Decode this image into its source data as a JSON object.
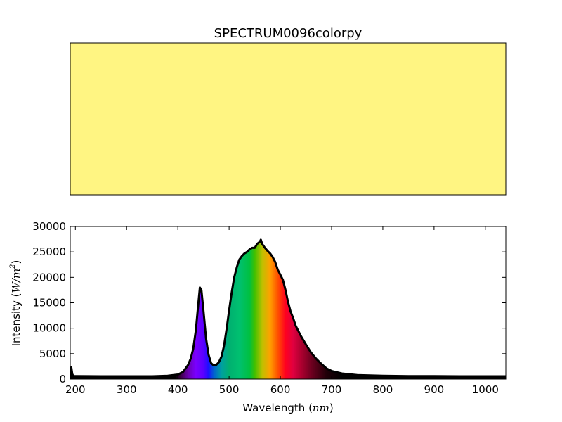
{
  "chart_data": [
    {
      "type": "color-swatch",
      "title": "SPECTRUM0096colorpy",
      "swatch_color": "#fff582"
    },
    {
      "type": "area",
      "fill_style": "spectral-rainbow",
      "line_color": "#000000",
      "xlabel": "Wavelength",
      "xlabel_unit": "nm",
      "ylabel": "Intensity",
      "ylabel_unit": "W/m",
      "ylabel_unit_exp": "2",
      "xlim": [
        190,
        1040
      ],
      "ylim": [
        0,
        30000
      ],
      "xticks": [
        200,
        300,
        400,
        500,
        600,
        700,
        800,
        900,
        1000
      ],
      "yticks": [
        0,
        5000,
        10000,
        15000,
        20000,
        25000,
        30000
      ],
      "x": [
        190,
        192,
        194,
        196,
        200,
        250,
        300,
        350,
        380,
        400,
        410,
        420,
        425,
        430,
        435,
        440,
        443,
        446,
        450,
        455,
        460,
        465,
        470,
        475,
        480,
        485,
        490,
        495,
        500,
        505,
        510,
        515,
        520,
        525,
        530,
        535,
        540,
        545,
        550,
        555,
        560,
        562,
        565,
        570,
        575,
        580,
        585,
        590,
        595,
        600,
        605,
        610,
        615,
        620,
        625,
        630,
        640,
        650,
        660,
        670,
        680,
        690,
        700,
        720,
        750,
        800,
        850,
        900,
        950,
        1000,
        1040
      ],
      "y": [
        800,
        2300,
        1000,
        600,
        600,
        550,
        550,
        550,
        650,
        900,
        1400,
        2800,
        4000,
        6000,
        9500,
        15000,
        18000,
        17500,
        13500,
        8000,
        4800,
        3100,
        2700,
        2800,
        3300,
        4400,
        6500,
        9800,
        13500,
        17000,
        20000,
        22000,
        23500,
        24200,
        24700,
        25000,
        25500,
        25800,
        25800,
        26600,
        27000,
        27400,
        26500,
        25800,
        25200,
        24700,
        24000,
        23000,
        21500,
        20500,
        19500,
        17500,
        15200,
        13300,
        12000,
        10500,
        8500,
        6800,
        5200,
        4000,
        3000,
        2100,
        1600,
        1100,
        800,
        650,
        600,
        600,
        550,
        550,
        550
      ]
    }
  ]
}
